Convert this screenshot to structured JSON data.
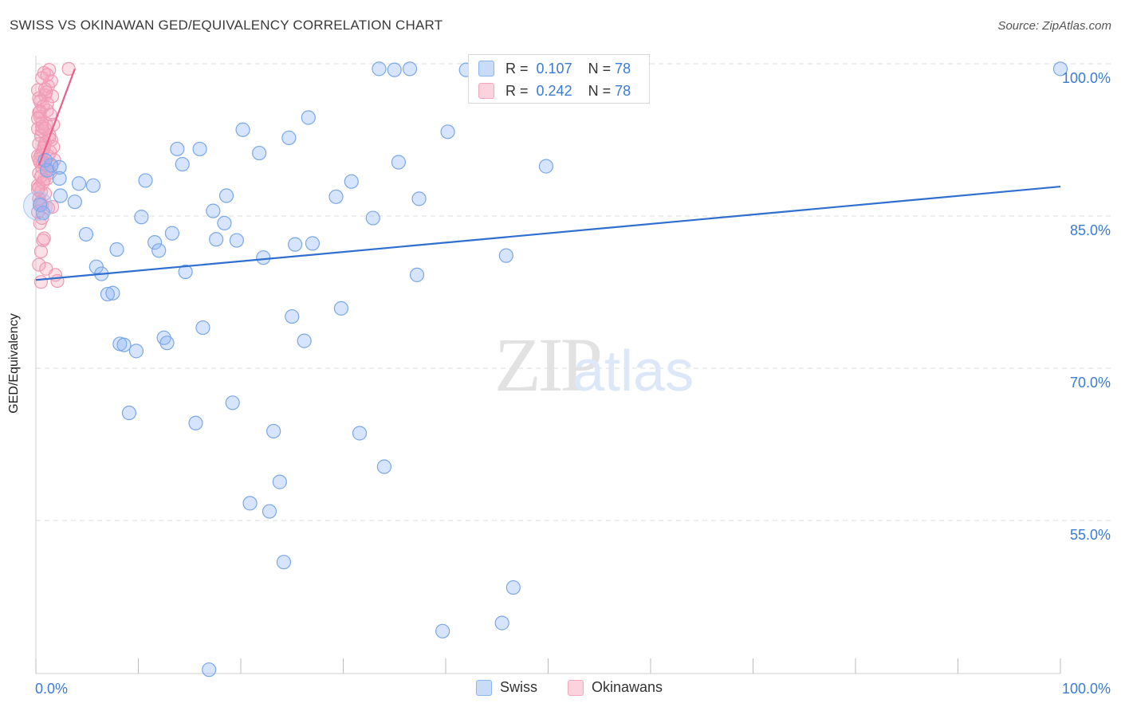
{
  "title": "SWISS VS OKINAWAN GED/EQUIVALENCY CORRELATION CHART",
  "source": "Source: ZipAtlas.com",
  "watermark": {
    "zip": "ZIP",
    "atlas": "atlas"
  },
  "legend_inset": {
    "rows": [
      {
        "r_label": "R =",
        "r_value": "0.107",
        "n_label": "N =",
        "n_value": "78",
        "color": "#8ab4f8"
      },
      {
        "r_label": "R =",
        "r_value": "0.242",
        "n_label": "N =",
        "n_value": "78",
        "color": "#f4a6bd"
      }
    ]
  },
  "legend_bottom": [
    {
      "label": "Swiss",
      "color": "#8ab4f8"
    },
    {
      "label": "Okinawans",
      "color": "#f4a6bd"
    }
  ],
  "chart_data": {
    "type": "scatter",
    "title": "SWISS VS OKINAWAN GED/EQUIVALENCY CORRELATION CHART",
    "xlabel": "",
    "ylabel": "GED/Equivalency",
    "xlim": [
      0,
      100
    ],
    "ylim": [
      40,
      101.5
    ],
    "x_tick_labels": [
      "0.0%",
      "100.0%"
    ],
    "y_ticks": [
      55,
      70,
      85,
      100
    ],
    "y_tick_labels": [
      "55.0%",
      "70.0%",
      "85.0%",
      "100.0%"
    ],
    "grid": true,
    "series": [
      {
        "name": "Swiss",
        "color": "#8ab4f8",
        "line_color": "#2f6fcf",
        "trend": {
          "x": [
            0,
            100
          ],
          "y": [
            78.7,
            87.9
          ]
        },
        "points": [
          [
            1.5,
            90.0
          ],
          [
            2.3,
            89.8
          ],
          [
            2.4,
            87.0
          ],
          [
            2.3,
            88.7
          ],
          [
            4.2,
            88.2
          ],
          [
            5.6,
            88.0
          ],
          [
            3.8,
            86.4
          ],
          [
            4.9,
            83.2
          ],
          [
            5.9,
            80.0
          ],
          [
            6.4,
            79.3
          ],
          [
            7.0,
            77.3
          ],
          [
            7.5,
            77.4
          ],
          [
            7.9,
            81.7
          ],
          [
            8.2,
            72.4
          ],
          [
            8.6,
            72.3
          ],
          [
            9.1,
            65.6
          ],
          [
            9.8,
            71.7
          ],
          [
            10.3,
            84.9
          ],
          [
            10.7,
            88.5
          ],
          [
            11.6,
            82.4
          ],
          [
            12.0,
            81.6
          ],
          [
            12.5,
            73.0
          ],
          [
            12.8,
            72.5
          ],
          [
            13.3,
            83.3
          ],
          [
            13.8,
            91.6
          ],
          [
            14.3,
            90.1
          ],
          [
            14.6,
            79.5
          ],
          [
            15.6,
            64.6
          ],
          [
            16.0,
            91.6
          ],
          [
            16.3,
            74.0
          ],
          [
            16.9,
            40.3
          ],
          [
            17.3,
            85.5
          ],
          [
            17.6,
            82.7
          ],
          [
            18.4,
            84.3
          ],
          [
            18.6,
            87.0
          ],
          [
            19.2,
            66.6
          ],
          [
            19.6,
            82.6
          ],
          [
            20.2,
            93.5
          ],
          [
            20.9,
            56.7
          ],
          [
            21.8,
            91.2
          ],
          [
            22.2,
            80.9
          ],
          [
            22.8,
            55.9
          ],
          [
            23.2,
            63.8
          ],
          [
            23.8,
            58.8
          ],
          [
            24.2,
            50.9
          ],
          [
            24.7,
            92.7
          ],
          [
            25.0,
            75.1
          ],
          [
            25.3,
            82.2
          ],
          [
            26.2,
            72.7
          ],
          [
            26.6,
            94.7
          ],
          [
            27.0,
            82.3
          ],
          [
            29.3,
            86.9
          ],
          [
            29.8,
            75.9
          ],
          [
            30.8,
            88.4
          ],
          [
            31.6,
            63.6
          ],
          [
            32.9,
            84.8
          ],
          [
            33.5,
            99.5
          ],
          [
            34.0,
            60.3
          ],
          [
            35.0,
            99.4
          ],
          [
            35.4,
            90.3
          ],
          [
            36.5,
            99.5
          ],
          [
            37.2,
            79.2
          ],
          [
            37.4,
            86.7
          ],
          [
            39.7,
            44.1
          ],
          [
            40.2,
            93.3
          ],
          [
            42.0,
            99.4
          ],
          [
            45.5,
            44.9
          ],
          [
            45.9,
            81.1
          ],
          [
            46.6,
            48.4
          ],
          [
            47.3,
            99.2
          ],
          [
            47.7,
            99.5
          ],
          [
            49.8,
            89.9
          ],
          [
            52.5,
            99.5
          ],
          [
            100.0,
            99.5
          ],
          [
            0.4,
            86.1
          ],
          [
            0.7,
            85.3
          ],
          [
            1.1,
            89.5
          ],
          [
            0.9,
            90.5
          ]
        ]
      },
      {
        "name": "Okinawans",
        "color": "#f4a6bd",
        "line_color": "#e8608a",
        "trend": {
          "x": [
            0.3,
            3.8
          ],
          "y": [
            90.0,
            99.5
          ]
        },
        "points": [
          [
            0.2,
            97.4
          ],
          [
            0.4,
            96.3
          ],
          [
            0.3,
            95.2
          ],
          [
            0.6,
            94.2
          ],
          [
            0.2,
            93.6
          ],
          [
            0.5,
            92.9
          ],
          [
            0.3,
            92.1
          ],
          [
            0.7,
            91.4
          ],
          [
            0.2,
            90.9
          ],
          [
            0.4,
            90.3
          ],
          [
            0.6,
            89.8
          ],
          [
            0.3,
            89.2
          ],
          [
            0.8,
            88.6
          ],
          [
            0.2,
            88.0
          ],
          [
            0.5,
            87.4
          ],
          [
            0.3,
            86.7
          ],
          [
            0.6,
            86.1
          ],
          [
            0.2,
            85.4
          ],
          [
            0.4,
            84.3
          ],
          [
            0.7,
            82.6
          ],
          [
            0.3,
            80.2
          ],
          [
            0.5,
            78.5
          ],
          [
            0.9,
            96.9
          ],
          [
            1.1,
            95.4
          ],
          [
            1.0,
            94.1
          ],
          [
            1.3,
            93.0
          ],
          [
            0.8,
            91.9
          ],
          [
            1.2,
            90.9
          ],
          [
            0.9,
            90.0
          ],
          [
            1.4,
            89.3
          ],
          [
            1.1,
            88.7
          ],
          [
            0.9,
            87.2
          ],
          [
            1.2,
            97.8
          ],
          [
            1.5,
            98.3
          ],
          [
            1.6,
            96.8
          ],
          [
            1.3,
            99.4
          ],
          [
            0.8,
            99.1
          ],
          [
            1.7,
            94.0
          ],
          [
            1.5,
            92.5
          ],
          [
            1.4,
            91.3
          ],
          [
            1.8,
            90.5
          ],
          [
            1.6,
            85.9
          ],
          [
            1.9,
            79.2
          ],
          [
            2.1,
            78.6
          ],
          [
            3.2,
            99.5
          ],
          [
            1.0,
            97.2
          ],
          [
            0.7,
            95.8
          ],
          [
            0.4,
            94.8
          ],
          [
            0.6,
            93.4
          ],
          [
            0.9,
            92.2
          ],
          [
            0.5,
            91.0
          ],
          [
            0.7,
            90.2
          ],
          [
            0.3,
            87.8
          ],
          [
            0.4,
            86.3
          ],
          [
            1.2,
            85.8
          ],
          [
            0.8,
            82.8
          ],
          [
            0.5,
            81.5
          ],
          [
            1.0,
            79.8
          ],
          [
            0.6,
            98.6
          ],
          [
            0.9,
            97.5
          ],
          [
            1.1,
            96.1
          ],
          [
            0.4,
            95.3
          ],
          [
            0.2,
            94.6
          ],
          [
            0.6,
            93.8
          ],
          [
            1.3,
            92.7
          ],
          [
            0.8,
            91.7
          ],
          [
            0.3,
            90.6
          ],
          [
            1.0,
            89.6
          ],
          [
            0.5,
            88.9
          ],
          [
            0.7,
            88.3
          ],
          [
            0.2,
            87.6
          ],
          [
            1.5,
            89.9
          ],
          [
            1.7,
            91.8
          ],
          [
            0.9,
            93.6
          ],
          [
            1.4,
            95.0
          ],
          [
            0.3,
            96.6
          ],
          [
            1.1,
            98.9
          ],
          [
            0.6,
            84.8
          ]
        ]
      }
    ]
  }
}
